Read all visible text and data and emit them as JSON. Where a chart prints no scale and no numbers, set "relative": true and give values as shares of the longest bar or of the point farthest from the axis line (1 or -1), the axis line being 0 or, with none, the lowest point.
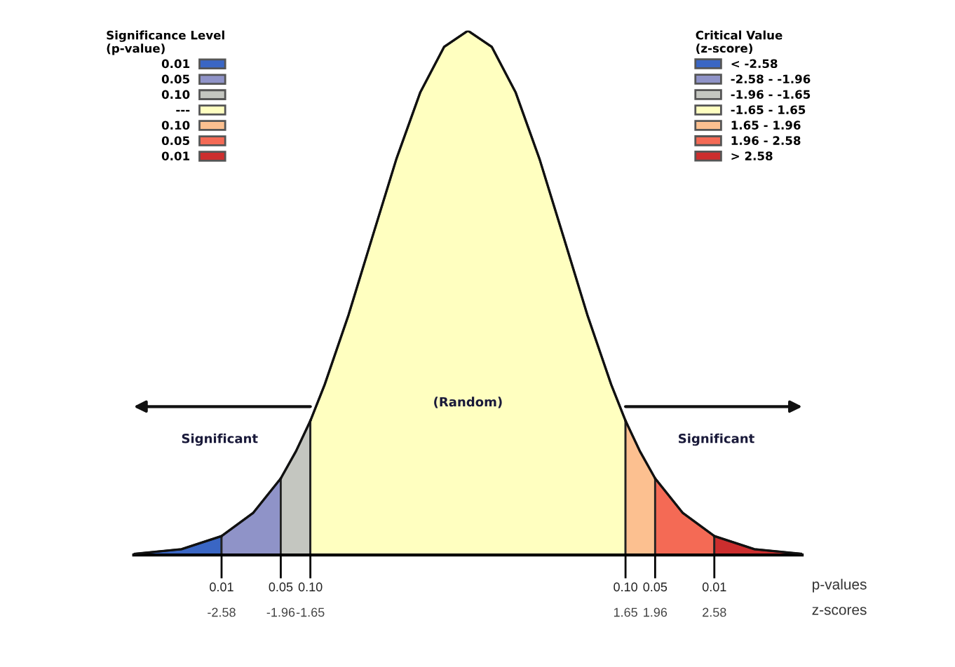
{
  "chart_data": {
    "type": "area",
    "relative": true,
    "xlim": [
      -3.5,
      3.5
    ],
    "xticks": [
      -2.58,
      -1.96,
      -1.65,
      1.65,
      1.96,
      2.58
    ],
    "legend": "top right",
    "legend_title": "Critical Value\n(z-score)",
    "grid": false,
    "series": [
      {
        "name": "< -2.58",
        "color": "#3a66c4",
        "x": [
          -3.5,
          -3.0,
          -2.58
        ],
        "values": [
          0.002,
          0.011,
          0.036
        ]
      },
      {
        "name": "-2.58 - -1.96",
        "color": "#8f93c8",
        "x": [
          -2.58,
          -2.25,
          -1.96
        ],
        "values": [
          0.036,
          0.08,
          0.146
        ]
      },
      {
        "name": "-1.96 - -1.65",
        "color": "#c4c6c0",
        "x": [
          -1.96,
          -1.8,
          -1.65
        ],
        "values": [
          0.146,
          0.198,
          0.256
        ]
      },
      {
        "name": "-1.65 - 1.65",
        "color": "#ffffc0",
        "x": [
          -1.65,
          -1.5,
          -1.25,
          -1.0,
          -0.75,
          -0.5,
          -0.25,
          0,
          0.25,
          0.5,
          0.75,
          1.0,
          1.25,
          1.5,
          1.65
        ],
        "values": [
          0.256,
          0.325,
          0.458,
          0.607,
          0.755,
          0.882,
          0.969,
          1.0,
          0.969,
          0.882,
          0.755,
          0.607,
          0.458,
          0.325,
          0.256
        ]
      },
      {
        "name": "1.65 - 1.96",
        "color": "#fcc090",
        "x": [
          1.65,
          1.8,
          1.96
        ],
        "values": [
          0.256,
          0.198,
          0.146
        ]
      },
      {
        "name": "1.96 - 2.58",
        "color": "#f46a55",
        "x": [
          1.96,
          2.25,
          2.58
        ],
        "values": [
          0.146,
          0.08,
          0.036
        ]
      },
      {
        "name": "> 2.58",
        "color": "#cc2e2e",
        "x": [
          2.58,
          3.0,
          3.5
        ],
        "values": [
          0.036,
          0.011,
          0.002
        ]
      }
    ],
    "annotations": [
      "Significance Level\n(p-value)",
      "0.01",
      "0.05",
      "0.10",
      "---",
      "0.10",
      "0.05",
      "0.01",
      "(Random)",
      "Significant",
      "Significant",
      "0.01",
      "0.05",
      "0.10",
      "0.10",
      "0.05",
      "0.01",
      "p-values",
      "z-scores"
    ]
  }
}
